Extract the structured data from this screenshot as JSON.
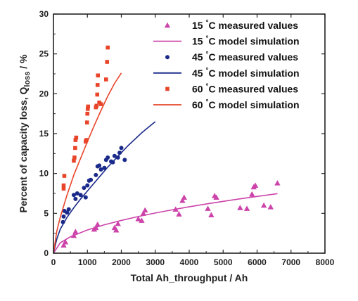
{
  "chart_data": {
    "type": "scatter",
    "title": "",
    "xlabel": "Total Ah_throughput / Ah",
    "ylabel": "Percent of capacity loss, Q",
    "ylabel_sub": "loss",
    "ylabel_unit": " / %",
    "xlim": [
      0,
      8000
    ],
    "ylim": [
      0,
      30
    ],
    "x_ticks": [
      0,
      1000,
      2000,
      3000,
      4000,
      5000,
      6000,
      7000,
      8000
    ],
    "y_ticks": [
      0,
      5,
      10,
      15,
      20,
      25,
      30
    ],
    "x_tick_labels": [
      "0",
      "1000",
      "2000",
      "3000",
      "4000",
      "5000",
      "6000",
      "7000",
      "8000"
    ],
    "y_tick_labels": [
      "0",
      "5",
      "10",
      "15",
      "20",
      "25",
      "30"
    ],
    "grid": false,
    "legend_position": "top-right",
    "legend": [
      {
        "temp": "15 ",
        "deg": "°",
        "suffix": "C measured values",
        "kind": "triangle",
        "color": "#cc44aa"
      },
      {
        "temp": "15 ",
        "deg": "°",
        "suffix": "C model simulation",
        "kind": "line",
        "color": "#cc44aa"
      },
      {
        "temp": "45 ",
        "deg": "°",
        "suffix": "C measured values",
        "kind": "circle",
        "color": "#1a2a8a"
      },
      {
        "temp": "45 ",
        "deg": "°",
        "suffix": "C model simulation",
        "kind": "line",
        "color": "#1a2a8a"
      },
      {
        "temp": "60 ",
        "deg": "°",
        "suffix": "C measured values",
        "kind": "square",
        "color": "#e8452a"
      },
      {
        "temp": "60 ",
        "deg": "°",
        "suffix": "C model simulation",
        "kind": "line",
        "color": "#e8452a"
      }
    ],
    "series": [
      {
        "name": "15 °C measured values",
        "marker": "triangle",
        "color": "#cc44aa",
        "points": [
          [
            300,
            1.0
          ],
          [
            350,
            1.4
          ],
          [
            600,
            2.2
          ],
          [
            650,
            2.7
          ],
          [
            1200,
            3.0
          ],
          [
            1250,
            3.2
          ],
          [
            1300,
            3.6
          ],
          [
            1800,
            3.2
          ],
          [
            1850,
            2.9
          ],
          [
            1900,
            3.7
          ],
          [
            2500,
            4.3
          ],
          [
            2600,
            4.1
          ],
          [
            2650,
            5.0
          ],
          [
            2700,
            5.4
          ],
          [
            3600,
            5.5
          ],
          [
            3700,
            4.9
          ],
          [
            3800,
            6.6
          ],
          [
            3850,
            7.0
          ],
          [
            4550,
            5.6
          ],
          [
            4650,
            4.8
          ],
          [
            4750,
            7.2
          ],
          [
            4800,
            7.0
          ],
          [
            5500,
            5.7
          ],
          [
            5700,
            5.6
          ],
          [
            5900,
            8.3
          ],
          [
            5950,
            8.5
          ],
          [
            5850,
            7.4
          ],
          [
            6200,
            6.0
          ],
          [
            6400,
            5.8
          ],
          [
            6600,
            8.8
          ]
        ]
      },
      {
        "name": "15 °C model simulation",
        "marker": "line",
        "color": "#cc44aa",
        "points": [
          [
            0,
            0
          ],
          [
            200,
            1.3
          ],
          [
            500,
            2.06
          ],
          [
            1000,
            2.91
          ],
          [
            1500,
            3.56
          ],
          [
            2000,
            4.11
          ],
          [
            2500,
            4.6
          ],
          [
            3000,
            5.04
          ],
          [
            3500,
            5.44
          ],
          [
            4000,
            5.82
          ],
          [
            4500,
            6.17
          ],
          [
            5000,
            6.5
          ],
          [
            5500,
            6.82
          ],
          [
            6000,
            7.12
          ],
          [
            6500,
            7.41
          ],
          [
            6600,
            7.47
          ]
        ]
      },
      {
        "name": "45 °C measured values",
        "marker": "circle",
        "color": "#1a2a8a",
        "points": [
          [
            280,
            3.9
          ],
          [
            300,
            4.6
          ],
          [
            320,
            5.3
          ],
          [
            400,
            5.1
          ],
          [
            450,
            5.5
          ],
          [
            600,
            7.3
          ],
          [
            650,
            6.8
          ],
          [
            700,
            7.5
          ],
          [
            800,
            7.3
          ],
          [
            900,
            8.2
          ],
          [
            950,
            7.0
          ],
          [
            1000,
            8.5
          ],
          [
            1050,
            9.1
          ],
          [
            1100,
            9.2
          ],
          [
            1250,
            9.8
          ],
          [
            1300,
            10.9
          ],
          [
            1350,
            11.0
          ],
          [
            1400,
            10.5
          ],
          [
            1500,
            10.7
          ],
          [
            1550,
            11.7
          ],
          [
            1600,
            12.0
          ],
          [
            1700,
            11.5
          ],
          [
            1750,
            11.4
          ],
          [
            1800,
            12.2
          ],
          [
            1900,
            12.0
          ],
          [
            1950,
            12.6
          ],
          [
            2000,
            13.2
          ],
          [
            2100,
            11.7
          ]
        ]
      },
      {
        "name": "45 °C model simulation",
        "marker": "line",
        "color": "#1a2a8a",
        "points": [
          [
            0,
            0
          ],
          [
            100,
            1.8
          ],
          [
            200,
            3.0
          ],
          [
            400,
            4.5
          ],
          [
            600,
            5.7
          ],
          [
            800,
            6.8
          ],
          [
            1000,
            7.8
          ],
          [
            1200,
            8.8
          ],
          [
            1400,
            9.8
          ],
          [
            1600,
            10.8
          ],
          [
            1800,
            11.7
          ],
          [
            2000,
            12.6
          ],
          [
            2200,
            13.5
          ],
          [
            2400,
            14.3
          ],
          [
            2600,
            15.1
          ],
          [
            2800,
            15.8
          ],
          [
            3000,
            16.5
          ]
        ]
      },
      {
        "name": "60 °C measured values",
        "marker": "square",
        "color": "#e8452a",
        "points": [
          [
            300,
            8.1
          ],
          [
            300,
            8.5
          ],
          [
            320,
            9.7
          ],
          [
            600,
            11.6
          ],
          [
            620,
            12.0
          ],
          [
            640,
            13.2
          ],
          [
            650,
            14.2
          ],
          [
            670,
            14.5
          ],
          [
            950,
            14.0
          ],
          [
            970,
            14.2
          ],
          [
            990,
            16.4
          ],
          [
            1000,
            17.5
          ],
          [
            1010,
            18.1
          ],
          [
            1020,
            18.4
          ],
          [
            1250,
            18.3
          ],
          [
            1270,
            18.5
          ],
          [
            1290,
            19.9
          ],
          [
            1300,
            21.1
          ],
          [
            1310,
            22.3
          ],
          [
            1350,
            18.9
          ],
          [
            1400,
            18.7
          ],
          [
            1550,
            21.8
          ],
          [
            1580,
            24.0
          ],
          [
            1600,
            25.8
          ]
        ]
      },
      {
        "name": "60 °C model simulation",
        "marker": "line",
        "color": "#e8452a",
        "points": [
          [
            0,
            0
          ],
          [
            100,
            2.8
          ],
          [
            200,
            4.5
          ],
          [
            400,
            7.3
          ],
          [
            600,
            9.8
          ],
          [
            800,
            11.9
          ],
          [
            1000,
            14.0
          ],
          [
            1200,
            16.0
          ],
          [
            1400,
            17.9
          ],
          [
            1600,
            19.7
          ],
          [
            1800,
            21.3
          ],
          [
            2000,
            22.6
          ]
        ]
      }
    ]
  }
}
